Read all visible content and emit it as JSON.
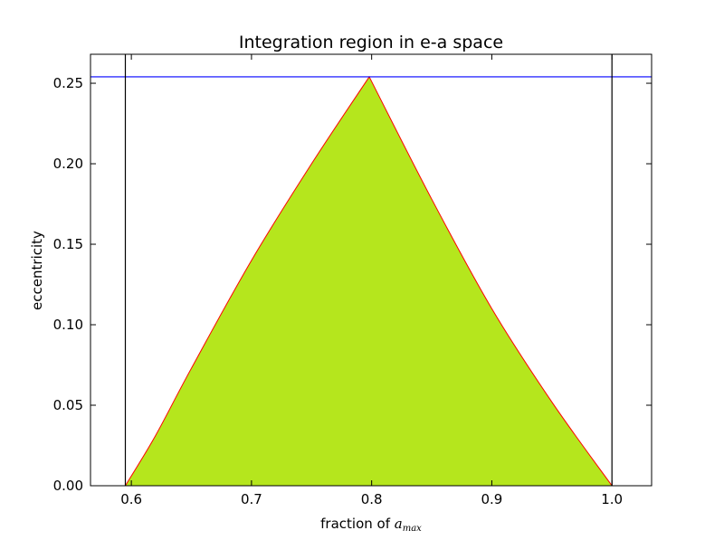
{
  "chart_data": {
    "type": "area",
    "title": "Integration region in e-a space",
    "xlabel": "fraction of ",
    "xlabel_math": "a",
    "xlabel_math_sub": "max",
    "ylabel": "eccentricity",
    "xlim": [
      0.566,
      1.033
    ],
    "ylim": [
      0,
      0.268
    ],
    "x_ticks": [
      0.6,
      0.7,
      0.8,
      0.9,
      1.0
    ],
    "x_tick_labels": [
      "0.6",
      "0.7",
      "0.8",
      "0.9",
      "1.0"
    ],
    "y_ticks": [
      0.0,
      0.05,
      0.1,
      0.15,
      0.2,
      0.25
    ],
    "y_tick_labels": [
      "0.00",
      "0.05",
      "0.10",
      "0.15",
      "0.20",
      "0.25"
    ],
    "grid": false,
    "fill_color": "#b5e61d",
    "boundary_color": "#ff0000",
    "region_boundary": {
      "x": [
        0.595,
        0.62,
        0.65,
        0.7,
        0.75,
        0.798,
        0.85,
        0.9,
        0.95,
        1.0
      ],
      "y": [
        0.0,
        0.031,
        0.073,
        0.14,
        0.2,
        0.254,
        0.178,
        0.11,
        0.052,
        0.0
      ]
    },
    "hlines": [
      {
        "y": 0.254,
        "color": "#0000ff"
      }
    ],
    "vlines": [
      {
        "x": 0.595,
        "color": "#000000"
      },
      {
        "x": 1.0,
        "color": "#000000"
      }
    ]
  }
}
